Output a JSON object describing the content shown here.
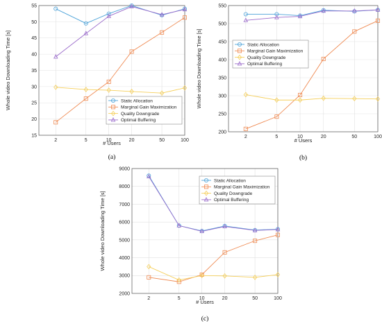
{
  "chart_data": [
    {
      "type": "line",
      "panel": "a",
      "caption": "(a)",
      "x": [
        2,
        5,
        10,
        20,
        50,
        100
      ],
      "xscale": "log",
      "xlim": [
        1.2,
        100
      ],
      "xlabel": "# Users",
      "ylabel": "Whole video Downloading Time [s]",
      "ylim": [
        15,
        55
      ],
      "yticks": [
        15,
        20,
        25,
        30,
        35,
        40,
        45,
        50,
        55
      ],
      "grid": true,
      "legend_position": "lower-right",
      "series": [
        {
          "name": "Static Allocation",
          "values": [
            54.0,
            49.5,
            52.5,
            55.0,
            52.0,
            54.0
          ],
          "color": "#4da3d9",
          "marker": "circle"
        },
        {
          "name": "Marginal Gain Maximization",
          "values": [
            19.0,
            26.3,
            31.5,
            40.8,
            46.7,
            51.3
          ],
          "color": "#ef8a52",
          "marker": "square"
        },
        {
          "name": "Quality Downgrade",
          "values": [
            29.8,
            29.1,
            28.9,
            28.5,
            28.0,
            29.6
          ],
          "color": "#f5cf5b",
          "marker": "diamond"
        },
        {
          "name": "Optimal Buffering",
          "values": [
            39.2,
            46.4,
            51.7,
            54.7,
            52.2,
            53.8
          ],
          "color": "#9b6ccb",
          "marker": "triangle"
        }
      ]
    },
    {
      "type": "line",
      "panel": "b",
      "caption": "(b)",
      "x": [
        2,
        5,
        10,
        20,
        50,
        100
      ],
      "xscale": "log",
      "xlim": [
        1.2,
        100
      ],
      "xlabel": "# Users",
      "ylabel": "Whole video Downloading Time [s]",
      "ylim": [
        200,
        550
      ],
      "yticks": [
        200,
        250,
        300,
        350,
        400,
        450,
        500,
        550
      ],
      "grid": true,
      "legend_position": "upper-left",
      "series": [
        {
          "name": "Static Allocation",
          "values": [
            526,
            526,
            522,
            537,
            534,
            538
          ],
          "color": "#4da3d9",
          "marker": "circle"
        },
        {
          "name": "Marginal Gain Maximization",
          "values": [
            208,
            242,
            302,
            402,
            478,
            508
          ],
          "color": "#ef8a52",
          "marker": "square"
        },
        {
          "name": "Quality Downgrade",
          "values": [
            303,
            288,
            288,
            293,
            292,
            291
          ],
          "color": "#f5cf5b",
          "marker": "diamond"
        },
        {
          "name": "Optimal Buffering",
          "values": [
            509,
            517,
            520,
            535,
            535,
            538
          ],
          "color": "#9b6ccb",
          "marker": "triangle"
        }
      ]
    },
    {
      "type": "line",
      "panel": "c",
      "caption": "(c)",
      "x": [
        2,
        5,
        10,
        20,
        50,
        100
      ],
      "xscale": "log",
      "xlim": [
        1.2,
        100
      ],
      "xlabel": "# Users",
      "ylabel": "Whole video Downloading Time [s]",
      "ylim": [
        2000,
        9000
      ],
      "yticks": [
        2000,
        3000,
        4000,
        5000,
        6000,
        7000,
        8000,
        9000
      ],
      "grid": true,
      "legend_position": "upper-right",
      "series": [
        {
          "name": "Static Allocation",
          "values": [
            8600,
            5800,
            5500,
            5780,
            5550,
            5600
          ],
          "color": "#4da3d9",
          "marker": "circle"
        },
        {
          "name": "Marginal Gain Maximization",
          "values": [
            2900,
            2650,
            3050,
            4300,
            4950,
            5280
          ],
          "color": "#ef8a52",
          "marker": "square"
        },
        {
          "name": "Quality Downgrade",
          "values": [
            3500,
            2750,
            3000,
            2980,
            2900,
            3050
          ],
          "color": "#f5cf5b",
          "marker": "diamond"
        },
        {
          "name": "Optimal Buffering",
          "values": [
            8550,
            5800,
            5480,
            5750,
            5530,
            5580
          ],
          "color": "#9b6ccb",
          "marker": "triangle"
        }
      ]
    }
  ]
}
